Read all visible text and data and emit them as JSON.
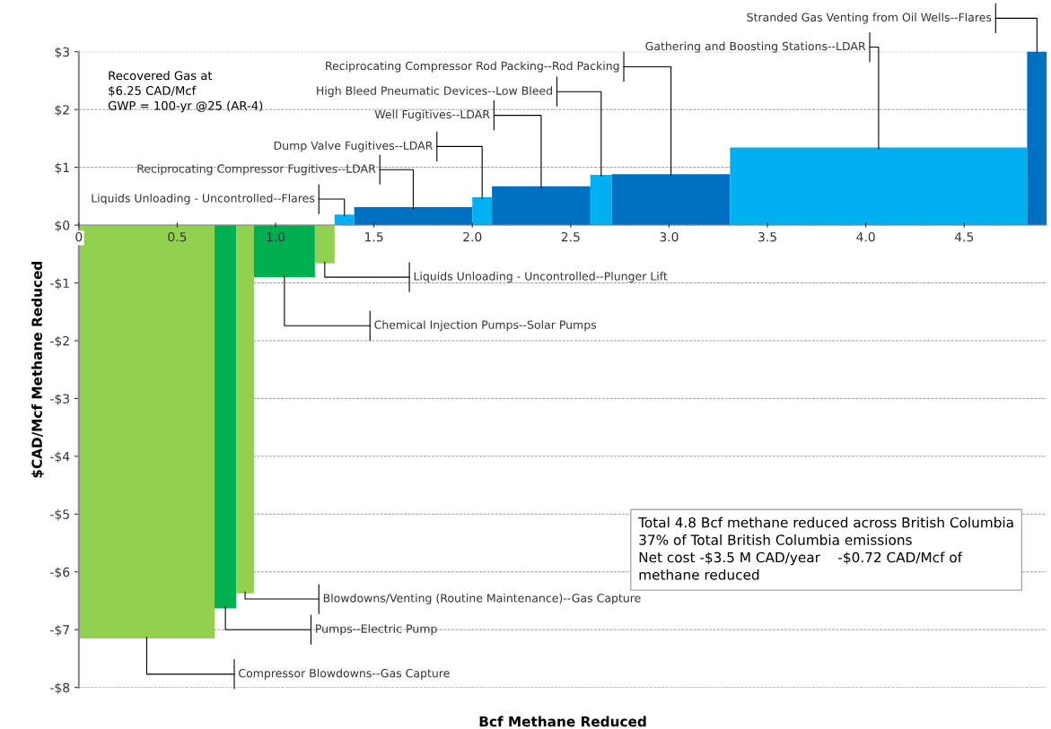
{
  "chart_data": {
    "type": "area",
    "xlabel": "Bcf Methane Reduced",
    "ylabel": "$CAD/Mcf Methane Reduced",
    "series": [
      {
        "name": "Compressor Blowdowns--Gas Capture",
        "color": "#92d050",
        "x": [
          0,
          0.69
        ],
        "values": [
          -7.13,
          -7.13
        ]
      },
      {
        "name": "Pumps--Electric Pump",
        "color": "#00b050",
        "x": [
          0.69,
          0.8
        ],
        "values": [
          -6.61,
          -6.61
        ]
      },
      {
        "name": "Blowdowns/Venting (Routine Maintenance)--Gas Capture",
        "color": "#92d050",
        "x": [
          0.8,
          0.89
        ],
        "values": [
          -6.35,
          -6.35
        ]
      },
      {
        "name": "Chemical Injection Pumps--Solar Pumps",
        "color": "#00b050",
        "x": [
          0.89,
          1.2
        ],
        "values": [
          -0.88,
          -0.88
        ]
      },
      {
        "name": "Liquids Unloading - Uncontrolled--Plunger Lift",
        "color": "#92d050",
        "x": [
          1.2,
          1.3
        ],
        "values": [
          -0.64,
          -0.64
        ]
      },
      {
        "name": "Liquids Unloading - Uncontrolled--Flares",
        "color": "#00b0f0",
        "x": [
          1.3,
          1.4
        ],
        "values": [
          0.16,
          0.16
        ]
      },
      {
        "name": "Reciprocating Compressor Fugitives--LDAR",
        "color": "#0070c0",
        "x": [
          1.4,
          2.0
        ],
        "values": [
          0.29,
          0.29
        ]
      },
      {
        "name": "Dump Valve Fugitives--LDAR",
        "color": "#00b0f0",
        "x": [
          2.0,
          2.1
        ],
        "values": [
          0.46,
          0.46
        ]
      },
      {
        "name": "Well Fugitives--LDAR",
        "color": "#0070c0",
        "x": [
          2.1,
          2.6
        ],
        "values": [
          0.65,
          0.65
        ]
      },
      {
        "name": "High Bleed Pneumatic Devices--Low Bleed",
        "color": "#00b0f0",
        "x": [
          2.6,
          2.71
        ],
        "values": [
          0.85,
          0.85
        ]
      },
      {
        "name": "Reciprocating Compressor Rod Packing--Rod Packing",
        "color": "#0070c0",
        "x": [
          2.71,
          3.31
        ],
        "values": [
          0.86,
          0.86
        ]
      },
      {
        "name": "Gathering and Boosting Stations--LDAR",
        "color": "#00b0f0",
        "x": [
          3.31,
          4.82
        ],
        "values": [
          1.32,
          1.32
        ]
      },
      {
        "name": "Stranded Gas Venting from Oil Wells--Flares",
        "color": "#0070c0",
        "x": [
          4.82,
          4.92
        ],
        "values": [
          3.0,
          3.0
        ]
      }
    ],
    "xlim": [
      0,
      4.92
    ],
    "xticks": [
      0,
      0.5,
      {
        "value": 1.0,
        "label": "1.0"
      },
      {
        "value": 1.5,
        "label": "1.5"
      },
      {
        "value": 2.0,
        "label": "2.0"
      },
      {
        "value": 2.5,
        "label": "2.5"
      },
      {
        "value": 3.0,
        "label": "3.0"
      },
      {
        "value": 3.5,
        "label": "3.5"
      },
      {
        "value": 4.0,
        "label": "4.0"
      },
      {
        "value": 4.5,
        "label": "4.5"
      }
    ],
    "ylim": [
      -8,
      3
    ],
    "yticks": [
      {
        "value": 3,
        "label": "$3"
      },
      {
        "value": 2,
        "label": "$2"
      },
      {
        "value": 1,
        "label": "$1"
      },
      {
        "value": 0,
        "label": "$0"
      },
      {
        "value": -1,
        "label": "-$1"
      },
      {
        "value": -2,
        "label": "-$2"
      },
      {
        "value": -3,
        "label": "-$3"
      },
      {
        "value": -4,
        "label": "-$4"
      },
      {
        "value": -5,
        "label": "-$5"
      },
      {
        "value": -6,
        "label": "-$6"
      },
      {
        "value": -7,
        "label": "-$7"
      },
      {
        "value": -8,
        "label": "-$8"
      }
    ],
    "grid": "y",
    "annotations": [
      "Recovered Gas at\n$6.25 CAD/Mcf\nGWP = 100-yr @25 (AR-4)",
      "Total 4.8 Bcf methane reduced across British Columbia\n37% of Total British Columbia emissions\nNet cost -$3.5 M CAD/year    -$0.72 CAD/Mcf of\nmethane reduced"
    ]
  }
}
